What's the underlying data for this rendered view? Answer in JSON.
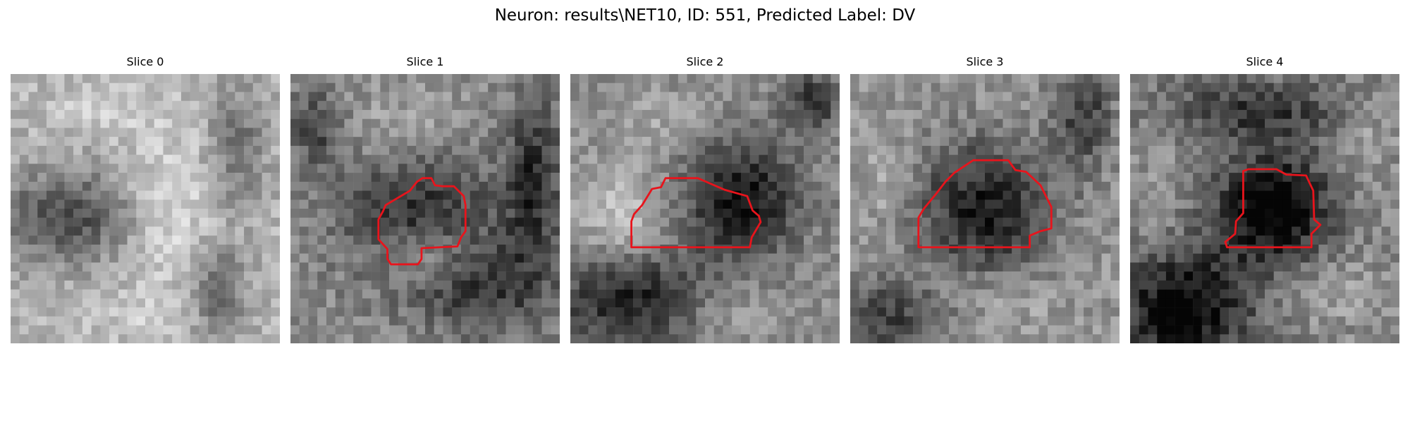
{
  "figure": {
    "title": "Neuron: results\\NET10, ID: 551, Predicted Label: DV",
    "contour_color": "#e8141c"
  },
  "panels": [
    {
      "title": "Slice 0",
      "has_contour": false
    },
    {
      "title": "Slice 1",
      "has_contour": true
    },
    {
      "title": "Slice 2",
      "has_contour": true
    },
    {
      "title": "Slice 3",
      "has_contour": true
    },
    {
      "title": "Slice 4",
      "has_contour": true
    }
  ]
}
